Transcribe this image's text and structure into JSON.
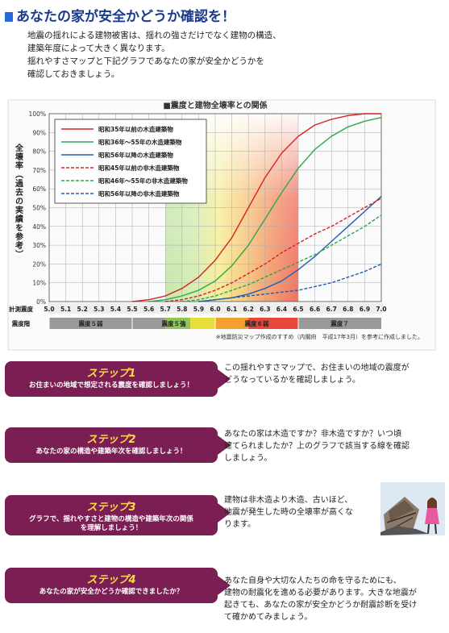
{
  "page_title": "あなたの家が安全かどうか確認を！",
  "intro_lines": [
    "地震の揺れによる建物被害は、揺れの強さだけでなく建物の構造、",
    "建築年度によって大きく異なります。",
    "揺れやすさマップと下記グラフであなたの家が安全かどうかを",
    "確認しておきましょう。"
  ],
  "chart_data": {
    "type": "line",
    "title": "■震度と建物全壊率との関係",
    "ylabel": "全壊率（過去の実績を参考）",
    "xlabel": "計測震度",
    "intensity_label": "震度階",
    "xlim": [
      5.0,
      7.0
    ],
    "ylim": [
      0,
      100
    ],
    "x_ticks": [
      "5.0",
      "5.1",
      "5.2",
      "5.3",
      "5.4",
      "5.5",
      "5.6",
      "5.7",
      "5.8",
      "5.9",
      "6.0",
      "6.1",
      "6.2",
      "6.3",
      "6.4",
      "6.5",
      "6.6",
      "6.7",
      "6.8",
      "6.9",
      "7.0"
    ],
    "y_ticks": [
      "0%",
      "10%",
      "20%",
      "30%",
      "40%",
      "50%",
      "60%",
      "70%",
      "80%",
      "90%",
      "100%"
    ],
    "grid": true,
    "legend_position": "top-left",
    "intensity_bands": [
      {
        "label": "震度５弱",
        "from": 5.0,
        "to": 5.5,
        "color": "#888888"
      },
      {
        "label": "震度５強",
        "from": 5.5,
        "to": 6.0,
        "color": "#7fbf50"
      },
      {
        "label": "震度６弱",
        "from": 6.0,
        "to": 6.5,
        "color": "#e87a3a"
      },
      {
        "label": "震度７",
        "from": 6.5,
        "to": 7.0,
        "color": "#888888"
      }
    ],
    "series": [
      {
        "name": "昭和35年以前の木造建築物",
        "color": "#d62020",
        "dashed": false,
        "x": [
          5.5,
          5.6,
          5.7,
          5.8,
          5.9,
          6.0,
          6.1,
          6.2,
          6.3,
          6.4,
          6.5,
          6.6,
          6.7,
          6.8,
          6.9,
          7.0
        ],
        "y": [
          0,
          1,
          3,
          7,
          13,
          22,
          34,
          50,
          66,
          79,
          88,
          94,
          97,
          99,
          100,
          100
        ]
      },
      {
        "name": "昭和36年～55年の木造建築物",
        "color": "#2ea84a",
        "dashed": false,
        "x": [
          5.6,
          5.7,
          5.8,
          5.9,
          6.0,
          6.1,
          6.2,
          6.3,
          6.4,
          6.5,
          6.6,
          6.7,
          6.8,
          6.9,
          7.0
        ],
        "y": [
          0,
          1,
          3,
          6,
          11,
          19,
          30,
          44,
          58,
          71,
          81,
          88,
          93,
          96,
          98
        ]
      },
      {
        "name": "昭和56年以降の木造建築物",
        "color": "#1f5fb0",
        "dashed": false,
        "x": [
          5.9,
          6.0,
          6.1,
          6.2,
          6.3,
          6.4,
          6.5,
          6.6,
          6.7,
          6.8,
          6.9,
          7.0
        ],
        "y": [
          0,
          1,
          2,
          4,
          7,
          11,
          17,
          24,
          32,
          40,
          48,
          56
        ]
      },
      {
        "name": "昭和45年以前の非木造建築物",
        "color": "#d62020",
        "dashed": true,
        "x": [
          5.7,
          5.8,
          5.9,
          6.0,
          6.1,
          6.2,
          6.3,
          6.4,
          6.5,
          6.6,
          6.7,
          6.8,
          6.9,
          7.0
        ],
        "y": [
          0,
          1,
          3,
          6,
          10,
          15,
          20,
          26,
          31,
          36,
          40,
          45,
          50,
          55
        ]
      },
      {
        "name": "昭和46年～55年の非木造建築物",
        "color": "#2ea84a",
        "dashed": true,
        "x": [
          5.8,
          5.9,
          6.0,
          6.1,
          6.2,
          6.3,
          6.4,
          6.5,
          6.6,
          6.7,
          6.8,
          6.9,
          7.0
        ],
        "y": [
          0,
          1,
          3,
          6,
          9,
          13,
          17,
          21,
          25,
          30,
          35,
          40,
          46
        ]
      },
      {
        "name": "昭和56年以降の非木造建築物",
        "color": "#1f5fb0",
        "dashed": true,
        "x": [
          5.9,
          6.0,
          6.1,
          6.2,
          6.3,
          6.4,
          6.5,
          6.6,
          6.7,
          6.8,
          6.9,
          7.0
        ],
        "y": [
          0,
          1,
          2,
          3,
          4,
          5,
          6,
          8,
          10,
          13,
          16,
          20
        ]
      }
    ],
    "note": "※地震防災マップ作成のすすめ（内閣府　平成17年3月）を参考に作成しました。"
  },
  "steps": [
    {
      "title": "ステップ1",
      "subtitle_lines": [
        "お住まいの地域で想定される震度を確認しましょう！"
      ],
      "text_lines": [
        "この揺れやすさマップで、お住まいの地域の震度が",
        "どうなっているかを確認しましょう。"
      ]
    },
    {
      "title": "ステップ2",
      "subtitle_lines": [
        "あなたの家の構造や建築年次を確認しましょう！"
      ],
      "text_lines": [
        "あなたの家は木造ですか？非木造ですか？いつ頃",
        "建てられましたか？上のグラフで該当する線を確認",
        "しましょう。"
      ]
    },
    {
      "title": "ステップ3",
      "subtitle_lines": [
        "グラフで、揺れやすさと建物の構造や建築年次の関係",
        "を理解しましょう！"
      ],
      "text_lines": [
        "建物は非木造より木造、古いほど、",
        "地震が発生した時の全壊率が高くな",
        "ります。"
      ]
    },
    {
      "title": "ステップ4",
      "subtitle_lines": [
        "あなたの家が安全かどうか確認できましたか？"
      ],
      "text_lines": [
        "あなた自身や大切な人たちの命を守るためにも、",
        "建物の耐震化を進める必要があります。大きな地震が",
        "起きても、あなたの家が安全かどうか耐震診断を受け",
        "て確かめてみましょう。"
      ]
    }
  ],
  "colors": {
    "title": "#1a3a8a",
    "step_bg": "#7b1e54",
    "step_title": "#ffd84a"
  },
  "illustration": "collapsed-house-and-woman-illustration"
}
